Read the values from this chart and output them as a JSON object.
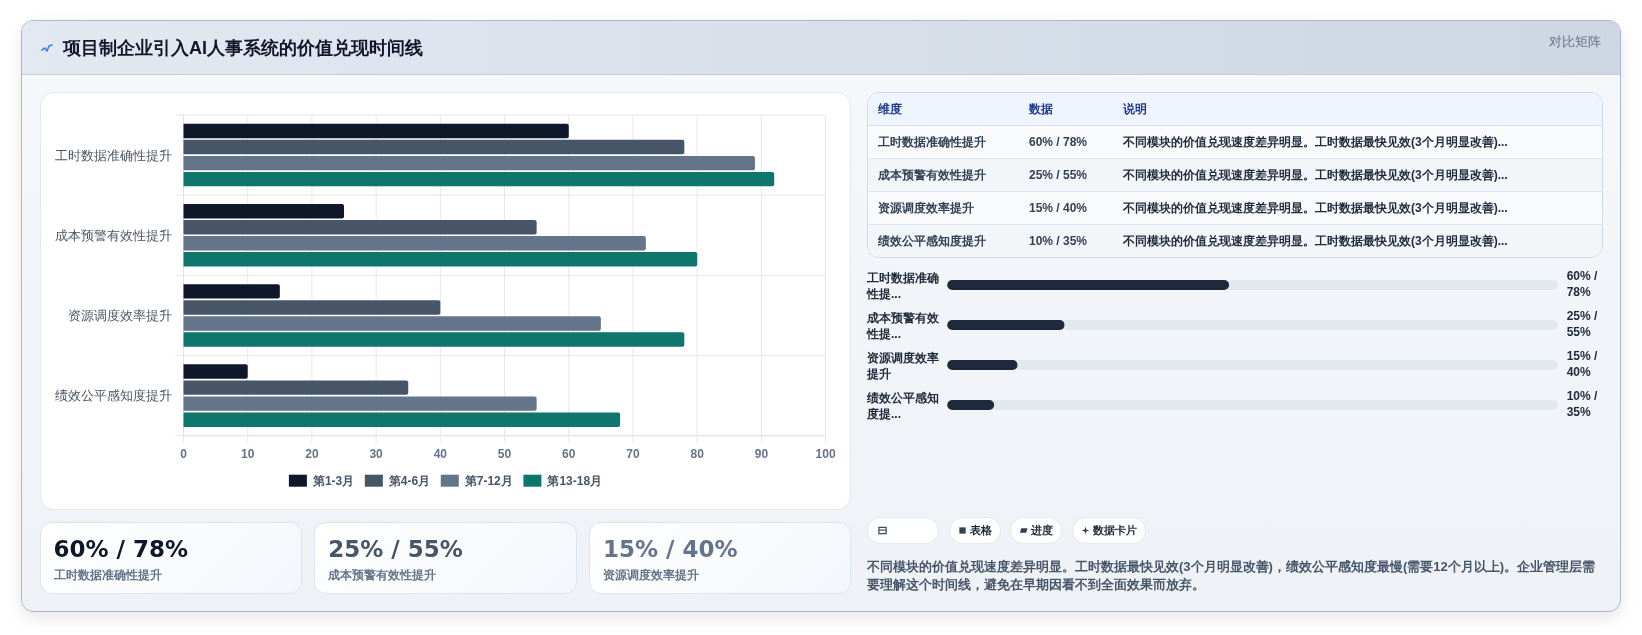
{
  "chart_data": [
    {
      "type": "other",
      "title": "项目制企业引入AI人事系统的价值兑现时间线",
      "subtitle": "对比矩阵"
    },
    {
      "type": "bar",
      "orientation": "horizontal",
      "categories": [
        "工时数据准确性提升",
        "成本预警有效性提升",
        "资源调度效率提升",
        "绩效公平感知度提升"
      ],
      "series": [
        {
          "name": "第1-3月",
          "color": "#0f172a",
          "values": [
            60,
            25,
            15,
            10
          ]
        },
        {
          "name": "第4-6月",
          "color": "#475569",
          "values": [
            78,
            55,
            40,
            35
          ]
        },
        {
          "name": "第7-12月",
          "color": "#64748b",
          "values": [
            89,
            72,
            65,
            55
          ]
        },
        {
          "name": "第13-18月",
          "color": "#0f766e",
          "values": [
            92,
            80,
            78,
            68
          ]
        }
      ],
      "xlim": [
        0,
        100
      ],
      "xticks": [
        0,
        10,
        20,
        30,
        40,
        50,
        60,
        70,
        80,
        90,
        100
      ],
      "grid": true,
      "legend": "bottom"
    },
    {
      "type": "other",
      "annotations": [
        "维度",
        "数据",
        "说明",
        "工时数据准确性提升",
        "60% / 78%",
        "不同模块的价值兑现速度差异明显。工时数据最快见效(3个月明显改善)...",
        "成本预警有效性提升",
        "25% / 55%",
        "不同模块的价值兑现速度差异明显。工时数据最快见效(3个月明显改善)...",
        "资源调度效率提升",
        "15% / 40%",
        "不同模块的价值兑现速度差异明显。工时数据最快见效(3个月明显改善)...",
        "绩效公平感知度提升",
        "10% / 35%",
        "不同模块的价值兑现速度差异明显。工时数据最快见效(3个月明显改善)..."
      ]
    },
    {
      "type": "bar",
      "orientation": "horizontal",
      "stacked": true,
      "categories": [
        "工时数据准确性提...",
        "成本预警有效性提...",
        "资源调度效率提升",
        "绩效公平感知度提..."
      ],
      "series": [
        {
          "color": "#1e293b",
          "values": [
            60,
            25,
            15,
            10
          ],
          "value_labels": [
            "60% / 78%",
            "25% / 55%",
            "15% / 40%",
            "10% / 35%"
          ]
        },
        {
          "color": "#e2e8f0",
          "values": [
            70,
            105,
            115,
            120
          ]
        }
      ]
    },
    {
      "type": "other",
      "annotations": [
        "60% / 78%",
        "工时数据准确性提升",
        "25% / 55%",
        "成本预警有效性提升",
        "15% / 40%",
        "资源调度效率提升"
      ]
    },
    {
      "type": "other",
      "categories": [
        null,
        "表格",
        "进度",
        "数据卡片"
      ],
      "annotations": [
        "不同模块的价值兑现速度差异明显。工时数据最快见效(3个月明显改善)，绩效公平感知度最慢(需要12个月以上)。企业管理层需要理解这个时间线，避免在早期因看不到全面效果而放弃。"
      ]
    }
  ]
}
